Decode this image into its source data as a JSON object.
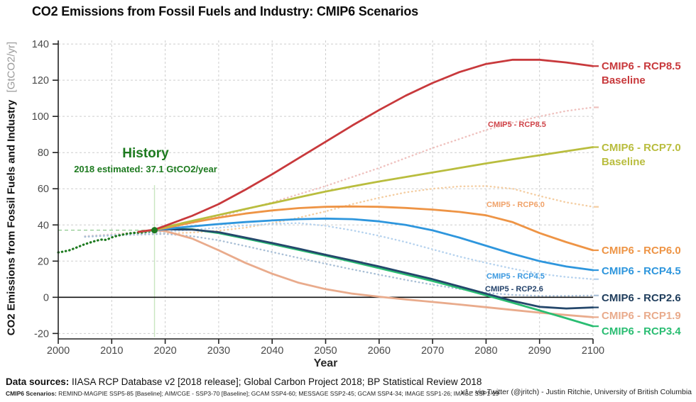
{
  "title": "CO2 Emissions from Fossil Fuels and Industry: CMIP6 Scenarios",
  "chart_data": {
    "type": "line",
    "xlabel": "Year",
    "ylabel": "CO2 Emissions from Fossil Fuels and Industry",
    "ylabel_unit": "[GtCO2/yr]",
    "xlim": [
      2000,
      2100
    ],
    "ylim": [
      -23,
      142
    ],
    "xticks": [
      2000,
      2010,
      2020,
      2030,
      2040,
      2050,
      2060,
      2070,
      2080,
      2090,
      2100
    ],
    "yticks": [
      140,
      120,
      100,
      80,
      60,
      40,
      20,
      0,
      -20
    ],
    "grid": true,
    "legend_position": "right-outside",
    "colors": {
      "grid": "#cdcdcd",
      "axis": "#222222",
      "zero_line": "#111111",
      "tick_label": "#4a4a4a",
      "history": "#1d7a1f",
      "history_guide": "#8fc98f",
      "history_guide_v": "#c9e6c0"
    },
    "history_marker": {
      "year": 2018,
      "value": 37.1,
      "label": "History",
      "sublabel": "2018 estimated: 37.1 GtCO2/year"
    },
    "series": [
      {
        "name": "CMIP5 - RCP8.5",
        "style": "dotted",
        "width": 2.4,
        "end_tick": true,
        "color": "#efc1be",
        "points": [
          [
            2005,
            33.8
          ],
          [
            2010,
            34.8
          ],
          [
            2015,
            36
          ],
          [
            2020,
            38
          ],
          [
            2025,
            41
          ],
          [
            2030,
            44.5
          ],
          [
            2035,
            48.5
          ],
          [
            2040,
            52.5
          ],
          [
            2045,
            57
          ],
          [
            2050,
            61.5
          ],
          [
            2055,
            66.5
          ],
          [
            2060,
            71.5
          ],
          [
            2065,
            77
          ],
          [
            2070,
            82.5
          ],
          [
            2075,
            87.5
          ],
          [
            2080,
            92.5
          ],
          [
            2085,
            96.5
          ],
          [
            2090,
            100
          ],
          [
            2095,
            103
          ],
          [
            2100,
            105
          ]
        ]
      },
      {
        "name": "CMIP5 - RCP6.0",
        "style": "dotted",
        "width": 2.4,
        "end_tick": true,
        "color": "#f4cda1",
        "points": [
          [
            2005,
            33.5
          ],
          [
            2010,
            34.3
          ],
          [
            2015,
            34.8
          ],
          [
            2020,
            35.2
          ],
          [
            2025,
            35.8
          ],
          [
            2030,
            36.8
          ],
          [
            2035,
            38.5
          ],
          [
            2040,
            41
          ],
          [
            2045,
            44
          ],
          [
            2050,
            47.5
          ],
          [
            2055,
            51.5
          ],
          [
            2060,
            55
          ],
          [
            2065,
            58
          ],
          [
            2070,
            60
          ],
          [
            2075,
            61.3
          ],
          [
            2080,
            61.5
          ],
          [
            2085,
            60
          ],
          [
            2090,
            56
          ],
          [
            2095,
            52.5
          ],
          [
            2100,
            50
          ]
        ]
      },
      {
        "name": "CMIP5 - RCP4.5",
        "style": "dotted",
        "width": 2.4,
        "end_tick": true,
        "color": "#b5d2ee",
        "points": [
          [
            2005,
            33.6
          ],
          [
            2010,
            34.4
          ],
          [
            2015,
            35.2
          ],
          [
            2020,
            36.2
          ],
          [
            2025,
            37.4
          ],
          [
            2030,
            38.5
          ],
          [
            2035,
            39.7
          ],
          [
            2040,
            40.6
          ],
          [
            2045,
            41
          ],
          [
            2050,
            39.5
          ],
          [
            2055,
            37
          ],
          [
            2060,
            34
          ],
          [
            2065,
            30.5
          ],
          [
            2070,
            26.5
          ],
          [
            2075,
            22.5
          ],
          [
            2080,
            19
          ],
          [
            2085,
            15.8
          ],
          [
            2090,
            13
          ],
          [
            2095,
            11.2
          ],
          [
            2100,
            10
          ]
        ]
      },
      {
        "name": "CMIP5 - RCP2.6",
        "style": "dotted",
        "width": 2.4,
        "end_tick": true,
        "color": "#a9bfd6",
        "points": [
          [
            2005,
            33.4
          ],
          [
            2010,
            34.2
          ],
          [
            2015,
            34.6
          ],
          [
            2020,
            35
          ],
          [
            2025,
            33.8
          ],
          [
            2030,
            31.5
          ],
          [
            2035,
            28.3
          ],
          [
            2040,
            25
          ],
          [
            2045,
            21.7
          ],
          [
            2050,
            18.5
          ],
          [
            2055,
            15.4
          ],
          [
            2060,
            12.5
          ],
          [
            2065,
            9.6
          ],
          [
            2070,
            7
          ],
          [
            2075,
            4.6
          ],
          [
            2080,
            2.5
          ],
          [
            2085,
            1.3
          ],
          [
            2090,
            0.8
          ],
          [
            2095,
            0.8
          ],
          [
            2100,
            1
          ]
        ]
      },
      {
        "name": "History",
        "style": "dotted",
        "width": 3.2,
        "end_tick": false,
        "color": "#1d7a1f",
        "points": [
          [
            2000,
            24.8
          ],
          [
            2001,
            25.3
          ],
          [
            2002,
            25.9
          ],
          [
            2003,
            27
          ],
          [
            2004,
            28.2
          ],
          [
            2005,
            29.4
          ],
          [
            2006,
            30.3
          ],
          [
            2007,
            31.2
          ],
          [
            2008,
            31.9
          ],
          [
            2009,
            31.7
          ],
          [
            2010,
            33.1
          ],
          [
            2011,
            34
          ],
          [
            2012,
            34.6
          ],
          [
            2013,
            35.2
          ],
          [
            2014,
            35.6
          ],
          [
            2015,
            35.7
          ],
          [
            2016,
            35.9
          ],
          [
            2017,
            36.4
          ],
          [
            2018,
            37.1
          ]
        ]
      },
      {
        "name": "CMIP6 - RCP1.9",
        "style": "solid",
        "width": 2.8,
        "end_tick": true,
        "color": "#e9ab8c",
        "points": [
          [
            2015,
            36.2
          ],
          [
            2018,
            37
          ],
          [
            2020,
            36.6
          ],
          [
            2025,
            32.5
          ],
          [
            2030,
            26
          ],
          [
            2035,
            19
          ],
          [
            2040,
            13
          ],
          [
            2045,
            8
          ],
          [
            2050,
            4.5
          ],
          [
            2055,
            2
          ],
          [
            2060,
            0.3
          ],
          [
            2065,
            -1.2
          ],
          [
            2070,
            -2.6
          ],
          [
            2075,
            -4
          ],
          [
            2080,
            -5.5
          ],
          [
            2085,
            -7
          ],
          [
            2090,
            -8.5
          ],
          [
            2095,
            -9.8
          ],
          [
            2100,
            -11
          ]
        ]
      },
      {
        "name": "CMIP6 - RCP3.4",
        "style": "solid",
        "width": 2.8,
        "end_tick": true,
        "color": "#2abd72",
        "points": [
          [
            2015,
            36.2
          ],
          [
            2018,
            37.1
          ],
          [
            2020,
            37.9
          ],
          [
            2025,
            37.6
          ],
          [
            2030,
            35.5
          ],
          [
            2035,
            32.5
          ],
          [
            2040,
            29.4
          ],
          [
            2045,
            26.2
          ],
          [
            2050,
            23
          ],
          [
            2055,
            19.6
          ],
          [
            2060,
            16.1
          ],
          [
            2065,
            12.6
          ],
          [
            2070,
            9
          ],
          [
            2075,
            5.1
          ],
          [
            2080,
            1.1
          ],
          [
            2085,
            -3
          ],
          [
            2090,
            -7.3
          ],
          [
            2095,
            -11.6
          ],
          [
            2100,
            -16
          ]
        ]
      },
      {
        "name": "CMIP6 - RCP2.6",
        "style": "solid",
        "width": 2.8,
        "end_tick": true,
        "color": "#24476b",
        "points": [
          [
            2015,
            36.2
          ],
          [
            2018,
            37.2
          ],
          [
            2020,
            37.6
          ],
          [
            2025,
            37.4
          ],
          [
            2030,
            36
          ],
          [
            2035,
            33
          ],
          [
            2040,
            30
          ],
          [
            2045,
            26.8
          ],
          [
            2050,
            23.5
          ],
          [
            2055,
            20.3
          ],
          [
            2060,
            17
          ],
          [
            2065,
            13.5
          ],
          [
            2070,
            10
          ],
          [
            2075,
            6
          ],
          [
            2080,
            2
          ],
          [
            2085,
            -2
          ],
          [
            2090,
            -5.3
          ],
          [
            2095,
            -6.2
          ],
          [
            2100,
            -5.6
          ]
        ]
      },
      {
        "name": "CMIP6 - RCP4.5",
        "style": "solid",
        "width": 2.8,
        "end_tick": true,
        "color": "#2e96dd",
        "points": [
          [
            2015,
            36.2
          ],
          [
            2018,
            37.1
          ],
          [
            2020,
            37.8
          ],
          [
            2025,
            39.2
          ],
          [
            2030,
            40.5
          ],
          [
            2035,
            41.6
          ],
          [
            2040,
            42.5
          ],
          [
            2045,
            43.2
          ],
          [
            2050,
            43.5
          ],
          [
            2055,
            43.2
          ],
          [
            2060,
            42
          ],
          [
            2065,
            40
          ],
          [
            2070,
            37
          ],
          [
            2075,
            33
          ],
          [
            2080,
            28.5
          ],
          [
            2085,
            24
          ],
          [
            2090,
            20
          ],
          [
            2095,
            17
          ],
          [
            2100,
            15
          ]
        ]
      },
      {
        "name": "CMIP6 - RCP6.0",
        "style": "solid",
        "width": 2.8,
        "end_tick": true,
        "color": "#ee9445",
        "points": [
          [
            2015,
            36.2
          ],
          [
            2018,
            37.2
          ],
          [
            2020,
            38.3
          ],
          [
            2025,
            41.3
          ],
          [
            2030,
            44
          ],
          [
            2035,
            46.3
          ],
          [
            2040,
            48
          ],
          [
            2045,
            49.3
          ],
          [
            2050,
            50
          ],
          [
            2055,
            50.2
          ],
          [
            2060,
            50
          ],
          [
            2065,
            49.4
          ],
          [
            2070,
            48.5
          ],
          [
            2075,
            47.2
          ],
          [
            2080,
            45.3
          ],
          [
            2085,
            41.5
          ],
          [
            2090,
            35.5
          ],
          [
            2095,
            30.5
          ],
          [
            2100,
            26
          ]
        ]
      },
      {
        "name": "CMIP6 - RCP7.0 Baseline",
        "style": "solid",
        "width": 2.8,
        "end_tick": true,
        "color": "#b9bd3e",
        "points": [
          [
            2015,
            36.2
          ],
          [
            2018,
            37.3
          ],
          [
            2020,
            38.8
          ],
          [
            2025,
            42.2
          ],
          [
            2030,
            45.5
          ],
          [
            2035,
            48.8
          ],
          [
            2040,
            52
          ],
          [
            2045,
            55.3
          ],
          [
            2050,
            58.5
          ],
          [
            2055,
            61.3
          ],
          [
            2060,
            64
          ],
          [
            2065,
            66.5
          ],
          [
            2070,
            69
          ],
          [
            2075,
            71.5
          ],
          [
            2080,
            74
          ],
          [
            2085,
            76.3
          ],
          [
            2090,
            78.5
          ],
          [
            2095,
            80.8
          ],
          [
            2100,
            83
          ]
        ]
      },
      {
        "name": "CMIP6 - RCP8.5 Baseline",
        "style": "solid",
        "width": 2.8,
        "end_tick": true,
        "color": "#c8393c",
        "points": [
          [
            2015,
            36.2
          ],
          [
            2018,
            37.4
          ],
          [
            2020,
            39.5
          ],
          [
            2025,
            45
          ],
          [
            2030,
            51.5
          ],
          [
            2035,
            59.5
          ],
          [
            2040,
            68
          ],
          [
            2045,
            77
          ],
          [
            2050,
            86
          ],
          [
            2055,
            95
          ],
          [
            2060,
            103.5
          ],
          [
            2065,
            111.5
          ],
          [
            2070,
            118.5
          ],
          [
            2075,
            124.5
          ],
          [
            2080,
            129
          ],
          [
            2085,
            131.3
          ],
          [
            2090,
            131.3
          ],
          [
            2095,
            129.8
          ],
          [
            2100,
            127.8
          ]
        ]
      }
    ],
    "inplot_labels": [
      {
        "text": "CMIP5 - RCP8.5",
        "color": "#cf4348"
      },
      {
        "text": "CMIP5 - RCP6.0",
        "color": "#f0a269"
      },
      {
        "text": "CMIP5 - RCP4.5",
        "color": "#3b99e0"
      },
      {
        "text": "CMIP5 - RCP2.6",
        "color": "#24436b"
      }
    ],
    "legend": [
      {
        "line1": "CMIP6 - RCP8.5",
        "line2": "Baseline",
        "color": "#c8393c"
      },
      {
        "line1": "CMIP6 - RCP7.0",
        "line2": "Baseline",
        "color": "#b9bd3e"
      },
      {
        "line1": "CMIP6 - RCP6.0",
        "line2": "",
        "color": "#ee9445"
      },
      {
        "line1": "CMIP6 - RCP4.5",
        "line2": "",
        "color": "#2e96dd"
      },
      {
        "line1": "CMIP6 - RCP2.6",
        "line2": "",
        "color": "#1f3d5c"
      },
      {
        "line1": "CMIP6 - RCP1.9",
        "line2": "",
        "color": "#e9ab8c"
      },
      {
        "line1": "CMIP6 - RCP3.4",
        "line2": "",
        "color": "#2abd72"
      }
    ]
  },
  "footer": {
    "sources_label": "Data sources:",
    "sources_text": " IIASA RCP Database v2 [2018 release]; Global Carbon Project 2018; BP Statistical Review 2018",
    "scenarios_label": "CMIP6 Scenarios:",
    "scenarios_text": " REMIND-MAGPIE SSP5-85 [Baseline]; AIM/CGE - SSP3-70 [Baseline]; GCAM SSP4-60; MESSAGE SSP2-45; GCAM SSP4-34; IMAGE SSP1-26; IMAGE SSP1-19",
    "credit": "v1 - via Twitter (@jritch) - Justin Ritchie, University of British Columbia"
  }
}
